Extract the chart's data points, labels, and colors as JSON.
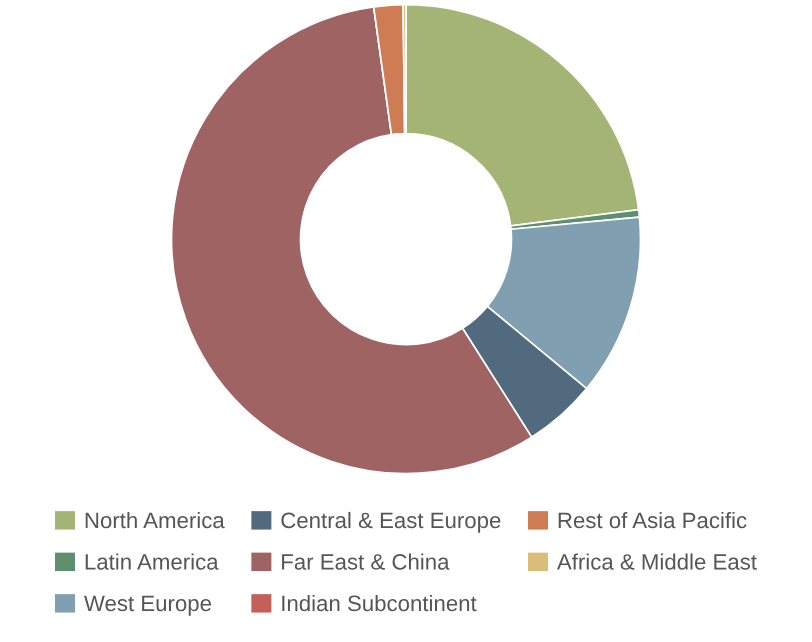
{
  "chart_data": {
    "type": "donut",
    "categories": [
      "North America",
      "Latin America",
      "West Europe",
      "Central & East Europe",
      "Far East & China",
      "Indian Subcontinent",
      "Rest of Asia Pacific",
      "Africa & Middle East"
    ],
    "values": [
      23,
      0.5,
      12.5,
      5,
      56.8,
      0,
      2,
      0.2
    ],
    "colors": [
      "#a3b475",
      "#5f8f6e",
      "#809fb0",
      "#526a7d",
      "#a06363",
      "#c4605a",
      "#cf7c55",
      "#dbbd7a"
    ],
    "legend": "bottom"
  }
}
